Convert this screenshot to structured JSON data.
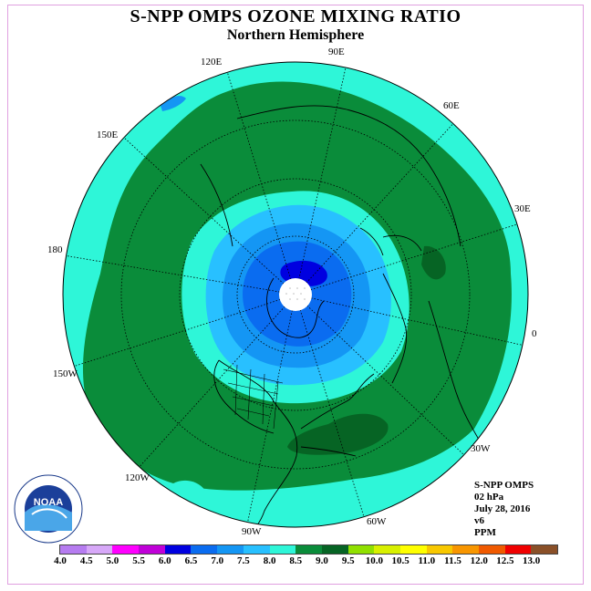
{
  "title": "S-NPP OMPS OZONE MIXING RATIO",
  "subtitle": "Northern Hemisphere",
  "info": [
    "S-NPP OMPS",
    "02 hPa",
    "July 28, 2016",
    "v6",
    "PPM"
  ],
  "longitude_labels": [
    "90E",
    "60E",
    "30E",
    "0",
    "30W",
    "60W",
    "90W",
    "120W",
    "150W",
    "180",
    "150E",
    "120E"
  ],
  "colorbar": {
    "ticks": [
      "4.0",
      "4.5",
      "5.0",
      "5.5",
      "6.0",
      "6.5",
      "7.0",
      "7.5",
      "8.0",
      "8.5",
      "9.0",
      "9.5",
      "10.0",
      "10.5",
      "11.0",
      "11.5",
      "12.0",
      "12.5",
      "13.0"
    ],
    "colors": [
      "#b67cf0",
      "#d7a8f8",
      "#ff00ff",
      "#c000d8",
      "#0000e0",
      "#0a6cf0",
      "#1496f4",
      "#28c0ff",
      "#2ef6d8",
      "#0a8c3a",
      "#066424",
      "#90e000",
      "#d8f000",
      "#ffff00",
      "#f8c800",
      "#f89600",
      "#f05a00",
      "#f00000",
      "#8a5028"
    ]
  },
  "logo_text": "NOAA"
}
